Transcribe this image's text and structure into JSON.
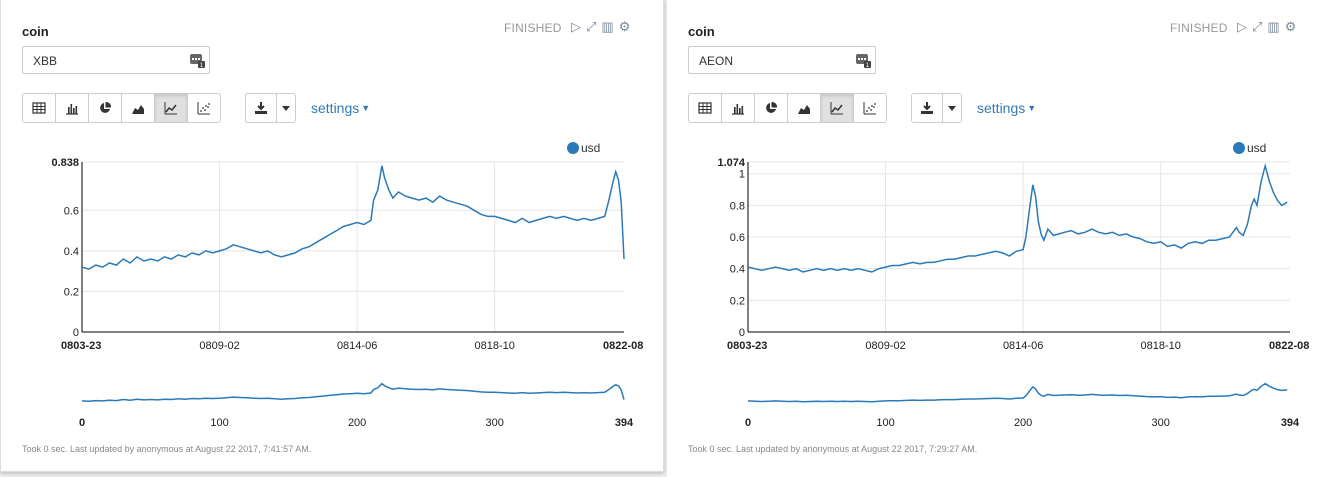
{
  "panels": [
    {
      "title": "coin",
      "status": "FINISHED",
      "input_value": "XBB",
      "settings_label": "settings",
      "footer": "Took 0 sec. Last updated by anonymous at August 22 2017, 7:41:57 AM.",
      "toolbar_icons": [
        "run-icon",
        "expand-icon",
        "book-icon",
        "gear-icon"
      ],
      "viz_buttons": [
        "table-icon",
        "bar-chart-icon",
        "pie-chart-icon",
        "area-chart-icon",
        "line-chart-icon",
        "scatter-chart-icon"
      ],
      "active_viz": 4
    },
    {
      "title": "coin",
      "status": "FINISHED",
      "input_value": "AEON",
      "settings_label": "settings",
      "footer": "Took 0 sec. Last updated by anonymous at August 22 2017, 7:29:27 AM.",
      "toolbar_icons": [
        "run-icon",
        "expand-icon",
        "book-icon",
        "gear-icon"
      ],
      "viz_buttons": [
        "table-icon",
        "bar-chart-icon",
        "pie-chart-icon",
        "area-chart-icon",
        "line-chart-icon",
        "scatter-chart-icon"
      ],
      "active_viz": 4
    }
  ],
  "colors": {
    "line": "#2a7ab9",
    "grid": "#e5e5e5",
    "link": "#337ab7"
  },
  "chart_data": [
    {
      "type": "line",
      "legend": "usd",
      "legend_position": "top-right",
      "y_ticks": [
        0,
        0.2,
        0.4,
        0.6
      ],
      "y_max_label": "0.838",
      "ylim": [
        0,
        0.838
      ],
      "x_tick_labels": [
        "0803-23",
        "0809-02",
        "0814-06",
        "0818-10",
        "0822-08"
      ],
      "x_tick_indices": [
        0,
        100,
        200,
        300,
        394
      ],
      "nav_tick_labels": [
        "0",
        "100",
        "200",
        "300",
        "394"
      ],
      "grid": true,
      "series_points": [
        [
          0,
          0.32
        ],
        [
          5,
          0.31
        ],
        [
          10,
          0.33
        ],
        [
          15,
          0.32
        ],
        [
          20,
          0.34
        ],
        [
          25,
          0.33
        ],
        [
          30,
          0.36
        ],
        [
          35,
          0.34
        ],
        [
          40,
          0.37
        ],
        [
          45,
          0.35
        ],
        [
          50,
          0.36
        ],
        [
          55,
          0.35
        ],
        [
          60,
          0.37
        ],
        [
          65,
          0.36
        ],
        [
          70,
          0.38
        ],
        [
          75,
          0.37
        ],
        [
          80,
          0.39
        ],
        [
          85,
          0.38
        ],
        [
          90,
          0.4
        ],
        [
          95,
          0.39
        ],
        [
          100,
          0.4
        ],
        [
          105,
          0.41
        ],
        [
          110,
          0.43
        ],
        [
          115,
          0.42
        ],
        [
          120,
          0.41
        ],
        [
          125,
          0.4
        ],
        [
          130,
          0.39
        ],
        [
          135,
          0.4
        ],
        [
          140,
          0.38
        ],
        [
          145,
          0.37
        ],
        [
          150,
          0.38
        ],
        [
          155,
          0.39
        ],
        [
          160,
          0.41
        ],
        [
          165,
          0.42
        ],
        [
          170,
          0.44
        ],
        [
          175,
          0.46
        ],
        [
          180,
          0.48
        ],
        [
          185,
          0.5
        ],
        [
          190,
          0.52
        ],
        [
          195,
          0.53
        ],
        [
          200,
          0.54
        ],
        [
          205,
          0.53
        ],
        [
          210,
          0.55
        ],
        [
          212,
          0.65
        ],
        [
          215,
          0.7
        ],
        [
          218,
          0.82
        ],
        [
          220,
          0.76
        ],
        [
          223,
          0.7
        ],
        [
          226,
          0.66
        ],
        [
          230,
          0.69
        ],
        [
          235,
          0.67
        ],
        [
          240,
          0.66
        ],
        [
          245,
          0.65
        ],
        [
          250,
          0.66
        ],
        [
          255,
          0.64
        ],
        [
          260,
          0.67
        ],
        [
          265,
          0.65
        ],
        [
          270,
          0.64
        ],
        [
          275,
          0.63
        ],
        [
          280,
          0.62
        ],
        [
          285,
          0.6
        ],
        [
          290,
          0.58
        ],
        [
          295,
          0.57
        ],
        [
          300,
          0.57
        ],
        [
          305,
          0.56
        ],
        [
          310,
          0.55
        ],
        [
          315,
          0.54
        ],
        [
          320,
          0.56
        ],
        [
          325,
          0.54
        ],
        [
          330,
          0.55
        ],
        [
          335,
          0.56
        ],
        [
          340,
          0.57
        ],
        [
          345,
          0.56
        ],
        [
          350,
          0.57
        ],
        [
          355,
          0.56
        ],
        [
          360,
          0.55
        ],
        [
          365,
          0.56
        ],
        [
          370,
          0.55
        ],
        [
          375,
          0.56
        ],
        [
          380,
          0.57
        ],
        [
          383,
          0.65
        ],
        [
          386,
          0.74
        ],
        [
          388,
          0.79
        ],
        [
          390,
          0.75
        ],
        [
          392,
          0.64
        ],
        [
          394,
          0.36
        ]
      ]
    },
    {
      "type": "line",
      "legend": "usd",
      "legend_position": "top-right",
      "y_ticks": [
        0,
        0.2,
        0.4,
        0.6,
        0.8,
        1
      ],
      "y_max_label": "1.074",
      "ylim": [
        0,
        1.074
      ],
      "x_tick_labels": [
        "0803-23",
        "0809-02",
        "0814-06",
        "0818-10",
        "0822-08"
      ],
      "x_tick_indices": [
        0,
        100,
        200,
        300,
        394
      ],
      "nav_tick_labels": [
        "0",
        "100",
        "200",
        "300",
        "394"
      ],
      "grid": true,
      "series_points": [
        [
          0,
          0.41
        ],
        [
          5,
          0.4
        ],
        [
          10,
          0.39
        ],
        [
          15,
          0.4
        ],
        [
          20,
          0.41
        ],
        [
          25,
          0.4
        ],
        [
          30,
          0.39
        ],
        [
          35,
          0.4
        ],
        [
          40,
          0.38
        ],
        [
          45,
          0.39
        ],
        [
          50,
          0.4
        ],
        [
          55,
          0.39
        ],
        [
          60,
          0.4
        ],
        [
          65,
          0.39
        ],
        [
          70,
          0.4
        ],
        [
          75,
          0.39
        ],
        [
          80,
          0.4
        ],
        [
          85,
          0.39
        ],
        [
          90,
          0.38
        ],
        [
          95,
          0.4
        ],
        [
          100,
          0.41
        ],
        [
          105,
          0.42
        ],
        [
          110,
          0.42
        ],
        [
          115,
          0.43
        ],
        [
          120,
          0.44
        ],
        [
          125,
          0.43
        ],
        [
          130,
          0.44
        ],
        [
          135,
          0.44
        ],
        [
          140,
          0.45
        ],
        [
          145,
          0.46
        ],
        [
          150,
          0.46
        ],
        [
          155,
          0.47
        ],
        [
          160,
          0.48
        ],
        [
          165,
          0.48
        ],
        [
          170,
          0.49
        ],
        [
          175,
          0.5
        ],
        [
          180,
          0.51
        ],
        [
          185,
          0.5
        ],
        [
          190,
          0.48
        ],
        [
          195,
          0.51
        ],
        [
          200,
          0.52
        ],
        [
          202,
          0.6
        ],
        [
          205,
          0.8
        ],
        [
          207,
          0.93
        ],
        [
          209,
          0.86
        ],
        [
          211,
          0.7
        ],
        [
          213,
          0.62
        ],
        [
          215,
          0.58
        ],
        [
          218,
          0.65
        ],
        [
          222,
          0.61
        ],
        [
          226,
          0.62
        ],
        [
          230,
          0.63
        ],
        [
          235,
          0.64
        ],
        [
          240,
          0.62
        ],
        [
          245,
          0.63
        ],
        [
          250,
          0.65
        ],
        [
          255,
          0.63
        ],
        [
          260,
          0.62
        ],
        [
          265,
          0.63
        ],
        [
          270,
          0.61
        ],
        [
          275,
          0.62
        ],
        [
          280,
          0.6
        ],
        [
          285,
          0.59
        ],
        [
          290,
          0.57
        ],
        [
          295,
          0.56
        ],
        [
          300,
          0.57
        ],
        [
          305,
          0.54
        ],
        [
          310,
          0.55
        ],
        [
          315,
          0.53
        ],
        [
          320,
          0.56
        ],
        [
          325,
          0.57
        ],
        [
          330,
          0.56
        ],
        [
          335,
          0.58
        ],
        [
          340,
          0.58
        ],
        [
          345,
          0.59
        ],
        [
          350,
          0.6
        ],
        [
          355,
          0.66
        ],
        [
          357,
          0.63
        ],
        [
          360,
          0.61
        ],
        [
          363,
          0.68
        ],
        [
          366,
          0.8
        ],
        [
          368,
          0.84
        ],
        [
          370,
          0.8
        ],
        [
          373,
          0.95
        ],
        [
          376,
          1.05
        ],
        [
          379,
          0.95
        ],
        [
          382,
          0.88
        ],
        [
          385,
          0.83
        ],
        [
          388,
          0.8
        ],
        [
          392,
          0.82
        ]
      ]
    }
  ]
}
